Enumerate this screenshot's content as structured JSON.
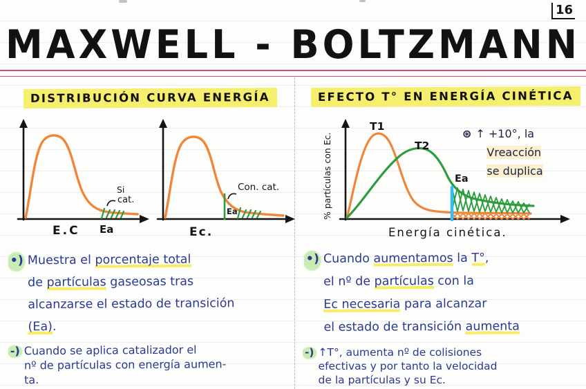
{
  "page": {
    "number": "16",
    "title": "MAXWELL - BOLTZMANN"
  },
  "colors": {
    "ink_black": "#151515",
    "ink_blue": "#2a3a92",
    "curve_orange": "#f0863b",
    "curve_green": "#2d9c3f",
    "ea_cyan": "#35bdf0",
    "highlight_yellow": "#f6ee6d",
    "margin_red": "#d84a7d",
    "bullet_green": "#c9ecb5"
  },
  "left": {
    "header": "DISTRIBUCIÓN CURVA ENERGÍA",
    "graph_no_catalyst": {
      "x_axis_label": "E.C",
      "ea_label": "Ea",
      "annotation_line1": "Si",
      "annotation_line2": "cat."
    },
    "graph_catalyst": {
      "x_axis_label": "Ec.",
      "ea_label": "Ea",
      "annotation": "Con. cat."
    },
    "bullet1": {
      "marker": "•)",
      "lines": [
        [
          {
            "t": "Muestra el "
          },
          {
            "t": "porcentaje total",
            "u": true
          }
        ],
        [
          {
            "t": "de "
          },
          {
            "t": "partículas",
            "u": true
          },
          {
            "t": " gaseosas tras"
          }
        ],
        [
          {
            "t": "alcanzarse el estado de transición"
          }
        ],
        [
          {
            "t": "(Ea)",
            "u": true
          },
          {
            "t": "."
          }
        ]
      ]
    },
    "bullet2": {
      "marker": "-)",
      "lines": [
        [
          {
            "t": "Cuando se aplica catalizador el"
          }
        ],
        [
          {
            "t": "nº de partículas con energía aumen-"
          }
        ],
        [
          {
            "t": "ta."
          }
        ]
      ]
    }
  },
  "right": {
    "header": "EFECTO T° EN ENERGÍA CINÉTICA",
    "graph": {
      "y_axis_label": "% partículas con Ec.",
      "x_axis_label": "Energía cinética.",
      "curve1_label": "T1",
      "curve2_label": "T2",
      "ea_label": "Ea"
    },
    "note": {
      "marker": "⊛",
      "lines": [
        [
          {
            "t": "↑ +10°, la"
          }
        ],
        [
          {
            "t": "Vreacción",
            "h": true
          }
        ],
        [
          {
            "t": "se duplica",
            "h": true
          }
        ]
      ]
    },
    "bullet1": {
      "marker": "•)",
      "lines": [
        [
          {
            "t": "Cuando "
          },
          {
            "t": "aumentamos",
            "u": true
          },
          {
            "t": " la "
          },
          {
            "t": "T°",
            "u": true
          },
          {
            "t": ","
          }
        ],
        [
          {
            "t": "el nº de "
          },
          {
            "t": "partículas",
            "u": true
          },
          {
            "t": " con la"
          }
        ],
        [
          {
            "t": "Ec necesaria",
            "u": true
          },
          {
            "t": " para alcanzar"
          }
        ],
        [
          {
            "t": "el estado de transición "
          },
          {
            "t": "aumenta",
            "u": true
          }
        ]
      ]
    },
    "bullet2": {
      "marker": "-)",
      "lines": [
        [
          {
            "t": "↑T°, aumenta nº de colisiones"
          }
        ],
        [
          {
            "t": "efectivas y por tanto la velocidad"
          }
        ],
        [
          {
            "t": "de la partículas y su Ec."
          }
        ]
      ]
    }
  }
}
